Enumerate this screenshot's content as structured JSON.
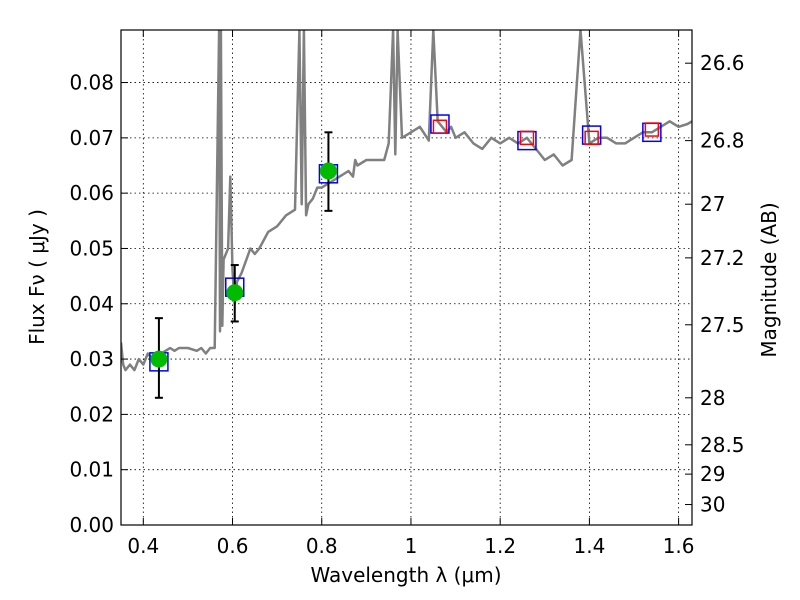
{
  "chart_data": {
    "type": "scatter",
    "xlabel": "Wavelength  λ (μm)",
    "ylabel": "Flux  Fν  ( μJy )",
    "y2label": "Magnitude (AB)",
    "xlim": [
      0.35,
      1.63
    ],
    "ylim": [
      0.0,
      0.0895
    ],
    "grid": true,
    "x_ticks": [
      0.4,
      0.6,
      0.8,
      1.0,
      1.2,
      1.4,
      1.6
    ],
    "x_tick_labels": [
      "0.4",
      "0.6",
      "0.8",
      "1",
      "1.2",
      "1.4",
      "1.6"
    ],
    "y_ticks": [
      0.0,
      0.01,
      0.02,
      0.03,
      0.04,
      0.05,
      0.06,
      0.07,
      0.08
    ],
    "y_tick_labels": [
      "0.00",
      "0.01",
      "0.02",
      "0.03",
      "0.04",
      "0.05",
      "0.06",
      "0.07",
      "0.08"
    ],
    "y2_ticks": [
      {
        "flux": 0.0835,
        "label": "26.6"
      },
      {
        "flux": 0.0695,
        "label": "26.8"
      },
      {
        "flux": 0.058,
        "label": "27"
      },
      {
        "flux": 0.0483,
        "label": "27.2"
      },
      {
        "flux": 0.0362,
        "label": "27.5"
      },
      {
        "flux": 0.023,
        "label": "28"
      },
      {
        "flux": 0.0145,
        "label": "28.5"
      },
      {
        "flux": 0.0092,
        "label": "29"
      },
      {
        "flux": 0.0037,
        "label": "30"
      }
    ],
    "series": [
      {
        "kind": "line",
        "color": "#808080",
        "x": [
          0.35,
          0.355,
          0.36,
          0.37,
          0.38,
          0.39,
          0.4,
          0.41,
          0.42,
          0.43,
          0.44,
          0.45,
          0.46,
          0.47,
          0.48,
          0.5,
          0.52,
          0.53,
          0.54,
          0.55,
          0.56,
          0.57,
          0.572,
          0.574,
          0.577,
          0.58,
          0.59,
          0.595,
          0.6,
          0.605,
          0.61,
          0.62,
          0.64,
          0.65,
          0.66,
          0.68,
          0.7,
          0.72,
          0.74,
          0.75,
          0.755,
          0.76,
          0.765,
          0.77,
          0.78,
          0.79,
          0.8,
          0.82,
          0.84,
          0.86,
          0.87,
          0.875,
          0.88,
          0.9,
          0.92,
          0.94,
          0.95,
          0.96,
          0.965,
          0.97,
          0.98,
          1.0,
          1.02,
          1.04,
          1.05,
          1.06,
          1.07,
          1.08,
          1.09,
          1.1,
          1.12,
          1.14,
          1.16,
          1.18,
          1.2,
          1.22,
          1.24,
          1.26,
          1.28,
          1.3,
          1.32,
          1.34,
          1.36,
          1.38,
          1.4,
          1.42,
          1.44,
          1.46,
          1.48,
          1.5,
          1.52,
          1.54,
          1.56,
          1.58,
          1.6,
          1.62,
          1.63
        ],
        "y": [
          0.033,
          0.029,
          0.028,
          0.029,
          0.028,
          0.03,
          0.029,
          0.031,
          0.03,
          0.031,
          0.031,
          0.0315,
          0.032,
          0.0315,
          0.032,
          0.032,
          0.0315,
          0.032,
          0.031,
          0.032,
          0.032,
          0.0895,
          0.035,
          0.0895,
          0.036,
          0.048,
          0.05,
          0.063,
          0.046,
          0.04,
          0.044,
          0.0455,
          0.05,
          0.049,
          0.05,
          0.053,
          0.054,
          0.056,
          0.057,
          0.0895,
          0.058,
          0.0895,
          0.056,
          0.058,
          0.059,
          0.061,
          0.061,
          0.062,
          0.063,
          0.064,
          0.063,
          0.066,
          0.065,
          0.066,
          0.066,
          0.066,
          0.069,
          0.0895,
          0.067,
          0.0895,
          0.07,
          0.071,
          0.072,
          0.0695,
          0.0895,
          0.073,
          0.072,
          0.071,
          0.072,
          0.07,
          0.071,
          0.069,
          0.068,
          0.07,
          0.069,
          0.07,
          0.069,
          0.07,
          0.068,
          0.066,
          0.067,
          0.065,
          0.066,
          0.0895,
          0.069,
          0.07,
          0.07,
          0.069,
          0.069,
          0.07,
          0.071,
          0.071,
          0.072,
          0.073,
          0.072,
          0.0725,
          0.073
        ]
      },
      {
        "kind": "markers",
        "marker": "open-square",
        "color": "#0000ff",
        "x": [
          0.435,
          0.605,
          0.815,
          1.065,
          1.26,
          1.405,
          1.54
        ],
        "y": [
          0.0295,
          0.043,
          0.0635,
          0.0725,
          0.0695,
          0.0705,
          0.071
        ]
      },
      {
        "kind": "markers",
        "marker": "open-square",
        "color": "#ff0000",
        "x": [
          1.065,
          1.26,
          1.405,
          1.54
        ],
        "y": [
          0.072,
          0.07,
          0.07,
          0.0715
        ]
      },
      {
        "kind": "markers",
        "marker": "filled-circle",
        "color": "#00bb00",
        "x": [
          0.435,
          0.605,
          0.815
        ],
        "y": [
          0.03,
          0.042,
          0.064
        ],
        "yerr_low": [
          0.023,
          0.0368,
          0.0568
        ],
        "yerr_high": [
          0.0374,
          0.047,
          0.071
        ]
      }
    ]
  }
}
